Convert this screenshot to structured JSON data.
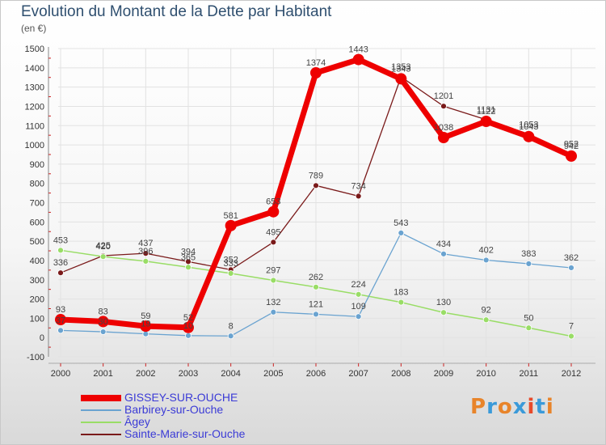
{
  "title": "Evolution du Montant de la Dette par Habitant",
  "subtitle": "(en €)",
  "logo": {
    "text": "Proxiti",
    "letter_colors": [
      "#e8842a",
      "#3a9ad9",
      "#e8842a",
      "#3a9ad9",
      "#e84a2a",
      "#3a9ad9",
      "#e8842a"
    ]
  },
  "chart_data": {
    "type": "line",
    "x": [
      "2000",
      "2001",
      "2002",
      "2003",
      "2004",
      "2005",
      "2006",
      "2007",
      "2008",
      "2009",
      "2010",
      "2011",
      "2012"
    ],
    "ylim": [
      -100,
      1500
    ],
    "yticks": [
      -100,
      0,
      100,
      200,
      300,
      400,
      500,
      600,
      700,
      800,
      900,
      1000,
      1100,
      1200,
      1300,
      1400,
      1500
    ],
    "grid": true,
    "legend_position": "bottom-left",
    "series": [
      {
        "name": "Sainte-Marie-sur-Ouche",
        "color": "#7a1a1a",
        "width": 1.3,
        "marker": 3.5,
        "values": [
          336,
          425,
          437,
          394,
          352,
          495,
          789,
          734,
          1353,
          1201,
          1131,
          1053,
          952
        ],
        "labels": [
          "336",
          "425",
          "437",
          "394",
          "352",
          "495",
          "789",
          "734",
          "1353",
          "1201",
          "1131",
          "1053",
          "952"
        ]
      },
      {
        "name": "Âgey",
        "color": "#99dd66",
        "width": 1.5,
        "marker": 3.5,
        "values": [
          453,
          420,
          396,
          365,
          333,
          297,
          262,
          224,
          183,
          130,
          92,
          50,
          7
        ],
        "labels": [
          "453",
          "420",
          "396",
          "365",
          "333",
          "297",
          "262",
          "224",
          "183",
          "130",
          "92",
          "50",
          "7"
        ]
      },
      {
        "name": "Barbirey-sur-Ouche",
        "color": "#6aa3d0",
        "width": 1.3,
        "marker": 3.5,
        "values": [
          37,
          30,
          19,
          10,
          8,
          132,
          121,
          109,
          543,
          434,
          402,
          383,
          362
        ],
        "labels": [
          "37",
          "30",
          "19",
          "10",
          "8",
          "132",
          "121",
          "109",
          "543",
          "434",
          "402",
          "383",
          "362"
        ]
      },
      {
        "name": "GISSEY-SUR-OUCHE",
        "color": "#ee0000",
        "width": 7,
        "marker": 7,
        "values": [
          93,
          83,
          59,
          52,
          581,
          653,
          1374,
          1443,
          1343,
          1038,
          1122,
          1043,
          942
        ],
        "labels": [
          "93",
          "83",
          "59",
          "52",
          "581",
          "653",
          "1374",
          "1443",
          "1343",
          "1038",
          "1122",
          "1043",
          "942"
        ]
      }
    ]
  },
  "legend": [
    {
      "label": "GISSEY-SUR-OUCHE",
      "color": "#ee0000"
    },
    {
      "label": "Barbirey-sur-Ouche",
      "color": "#6aa3d0"
    },
    {
      "label": "Âgey",
      "color": "#99dd66"
    },
    {
      "label": "Sainte-Marie-sur-Ouche",
      "color": "#7a1a1a"
    }
  ]
}
